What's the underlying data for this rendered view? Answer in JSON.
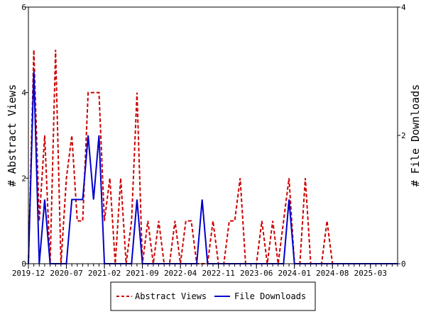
{
  "chart_data": {
    "type": "line",
    "ylabel_left": "# Abstract Views",
    "ylabel_right": "# File Downloads",
    "y_left_ticks": [
      "0",
      "2",
      "4",
      "6"
    ],
    "y_right_ticks": [
      "0",
      "2",
      "4"
    ],
    "y_left_lim": [
      0,
      6
    ],
    "y_right_lim": [
      0,
      4
    ],
    "x_tick_labels": [
      "2019-12",
      "2020-07",
      "2021-02",
      "2021-09",
      "2022-04",
      "2022-11",
      "2023-06",
      "2024-01",
      "2024-08",
      "2025-03"
    ],
    "x_tick_positions": [
      0,
      7,
      14,
      21,
      28,
      35,
      42,
      49,
      56,
      63
    ],
    "x_range": [
      0,
      68
    ],
    "grid": false,
    "legend_position": "bottom",
    "series": [
      {
        "name": "Abstract Views",
        "axis": "left",
        "color": "#cc0000",
        "dash": true,
        "values": [
          0,
          5,
          1,
          3,
          0,
          5,
          0,
          2,
          3,
          1,
          1,
          4,
          4,
          4,
          1,
          2,
          0,
          2,
          0,
          1,
          4,
          0,
          1,
          0,
          1,
          0,
          0,
          1,
          0,
          1,
          1,
          0,
          0,
          0,
          1,
          0,
          0,
          1,
          1,
          2,
          0,
          0,
          0,
          1,
          0,
          1,
          0,
          1,
          2,
          0,
          0,
          2,
          0,
          0,
          0,
          1,
          0,
          0,
          0,
          0,
          0,
          0,
          0,
          0,
          0,
          0,
          0,
          0,
          0
        ]
      },
      {
        "name": "File Downloads",
        "axis": "right",
        "color": "#0000cc",
        "dash": false,
        "values": [
          0,
          3,
          0,
          1,
          0,
          0,
          0,
          0,
          1,
          1,
          1,
          2,
          1,
          2,
          0,
          0,
          0,
          0,
          0,
          0,
          1,
          0,
          0,
          0,
          0,
          0,
          0,
          0,
          0,
          0,
          0,
          0,
          1,
          0,
          0,
          0,
          0,
          0,
          0,
          0,
          0,
          0,
          0,
          0,
          0,
          0,
          0,
          0,
          1,
          0,
          0,
          0,
          0,
          0,
          0,
          0,
          0,
          0,
          0,
          0,
          0,
          0,
          0,
          0,
          0,
          0,
          0,
          0,
          0
        ]
      }
    ]
  }
}
